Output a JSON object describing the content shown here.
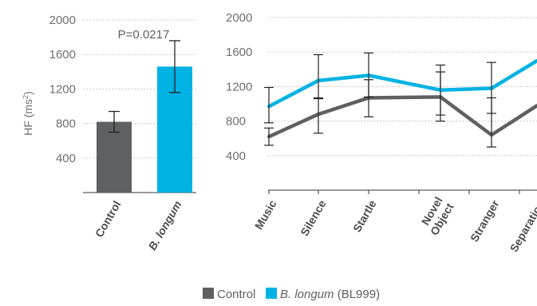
{
  "chart_data": [
    {
      "type": "bar",
      "ylabel": "HF (ms²)",
      "ylabel_main": "HF (ms",
      "ylabel_sup": "2",
      "ylabel_close": ")",
      "ylim": [
        0,
        2000
      ],
      "yticks": [
        "2000",
        "1600",
        "1200",
        "800",
        "400"
      ],
      "ytick_values": [
        2000,
        1600,
        1200,
        800,
        400
      ],
      "annotation": "P=0.0217",
      "categories": [
        "Control",
        "B. longum"
      ],
      "values": [
        820,
        1460
      ],
      "error": [
        [
          700,
          940
        ],
        [
          1160,
          1760
        ]
      ],
      "colors": [
        "#5f6062",
        "#00b2e3"
      ],
      "grid": "dotted horizontal"
    },
    {
      "type": "line",
      "ylim": [
        0,
        2000
      ],
      "yticks": [
        "2000",
        "1600",
        "1200",
        "800",
        "400"
      ],
      "ytick_values": [
        2000,
        1600,
        1200,
        800,
        400
      ],
      "categories": [
        [
          "Music"
        ],
        [
          "Silence"
        ],
        [
          "Startle"
        ],
        [
          "Novel",
          "Object"
        ],
        [
          "Stranger"
        ],
        [
          "Separation"
        ]
      ],
      "series": [
        {
          "name": "Control",
          "color": "#5f6062",
          "values": [
            620,
            880,
            1070,
            1080,
            640,
            980
          ],
          "error": [
            [
              520,
              720
            ],
            [
              660,
              1070
            ],
            [
              850,
              1280
            ],
            [
              800,
              1370
            ],
            [
              500,
              1070
            ],
            null
          ]
        },
        {
          "name": "B. longum (BL999)",
          "color": "#00b2e3",
          "values": [
            970,
            1270,
            1330,
            1160,
            1180,
            1500
          ],
          "error": [
            [
              780,
              1190
            ],
            [
              1060,
              1570
            ],
            [
              1080,
              1590
            ],
            [
              870,
              1450
            ],
            [
              890,
              1480
            ],
            null
          ]
        }
      ],
      "grid": "dotted horizontal"
    }
  ],
  "legend": {
    "control_label": "Control",
    "treat_italic": "B. longum",
    "treat_rest": " (BL999)",
    "control_color": "#5f6062",
    "treat_color": "#00b2e3"
  }
}
